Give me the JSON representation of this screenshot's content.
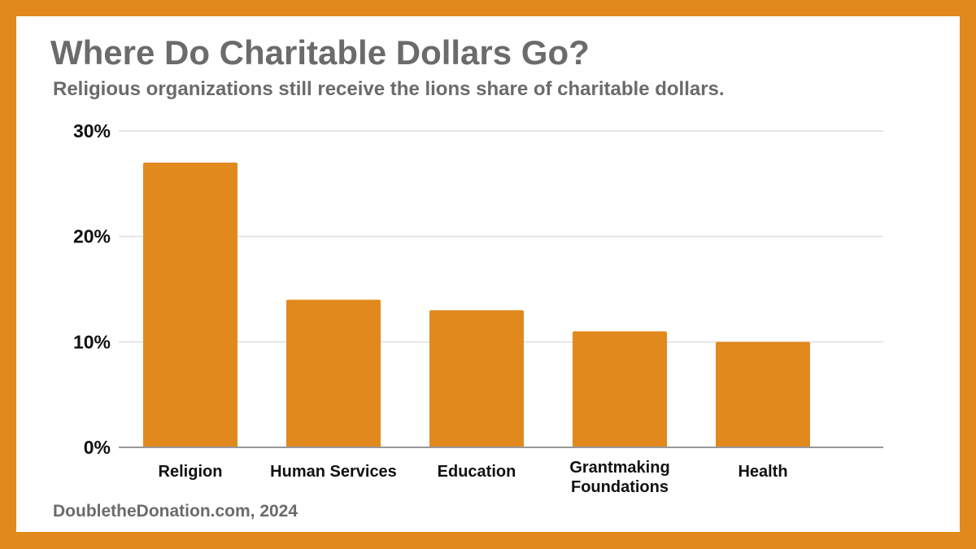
{
  "title": "Where Do Charitable Dollars Go?",
  "subtitle": "Religious organizations still receive the lions share of charitable dollars.",
  "source": "DoubletheDonation.com, 2024",
  "colors": {
    "border": "#e1891d",
    "bar": "#e1891d",
    "text": "#6b6b6b",
    "grid": "#dddddd",
    "axis": "#999999"
  },
  "chart_data": {
    "type": "bar",
    "categories": [
      [
        "Religion"
      ],
      [
        "Human Services"
      ],
      [
        "Education"
      ],
      [
        "Grantmaking",
        "Foundations"
      ],
      [
        "Health"
      ]
    ],
    "values": [
      27,
      14,
      13,
      11,
      10
    ],
    "unit": "%",
    "ylim": [
      0,
      30
    ],
    "yticks": [
      0,
      10,
      20,
      30
    ],
    "ytick_labels": [
      "0%",
      "10%",
      "20%",
      "30%"
    ],
    "grid": true,
    "xlabel": "",
    "ylabel": ""
  }
}
